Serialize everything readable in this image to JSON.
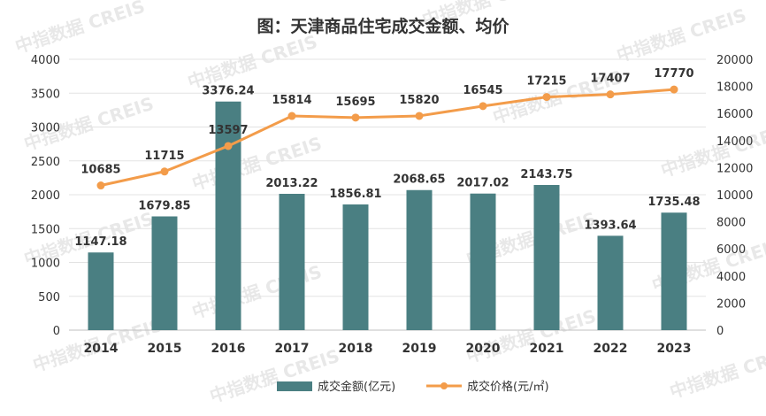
{
  "chart_data": {
    "type": "bar+line",
    "title": "图：天津商品住宅成交金额、均价",
    "categories": [
      "2014",
      "2015",
      "2016",
      "2017",
      "2018",
      "2019",
      "2020",
      "2021",
      "2022",
      "2023"
    ],
    "series": [
      {
        "name": "成交金额(亿元)",
        "type": "bar",
        "axis": "left",
        "color": "#4a7f82",
        "values": [
          1147.18,
          1679.85,
          3376.24,
          2013.22,
          1856.81,
          2068.65,
          2017.02,
          2143.75,
          1393.64,
          1735.48
        ],
        "labels": [
          "1147.18",
          "1679.85",
          "3376.24",
          "2013.22",
          "1856.81",
          "2068.65",
          "2017.02",
          "2143.75",
          "1393.64",
          "1735.48"
        ]
      },
      {
        "name": "成交价格(元/㎡)",
        "type": "line",
        "axis": "right",
        "color": "#f39c4a",
        "values": [
          10685,
          11715,
          13597,
          15814,
          15695,
          15820,
          16545,
          17215,
          17407,
          17770
        ],
        "labels": [
          "10685",
          "11715",
          "13597",
          "15814",
          "15695",
          "15820",
          "16545",
          "17215",
          "17407",
          "17770"
        ]
      }
    ],
    "y_left": {
      "min": 0,
      "max": 4000,
      "step": 500,
      "ticks": [
        "0",
        "500",
        "1000",
        "1500",
        "2000",
        "2500",
        "3000",
        "3500",
        "4000"
      ]
    },
    "y_right": {
      "min": 0,
      "max": 20000,
      "step": 2000,
      "ticks": [
        "0",
        "2000",
        "4000",
        "6000",
        "8000",
        "10000",
        "12000",
        "14000",
        "16000",
        "18000",
        "20000"
      ]
    },
    "grid": true,
    "legend": "bottom-center"
  },
  "watermark": "中指数据 CREIS"
}
